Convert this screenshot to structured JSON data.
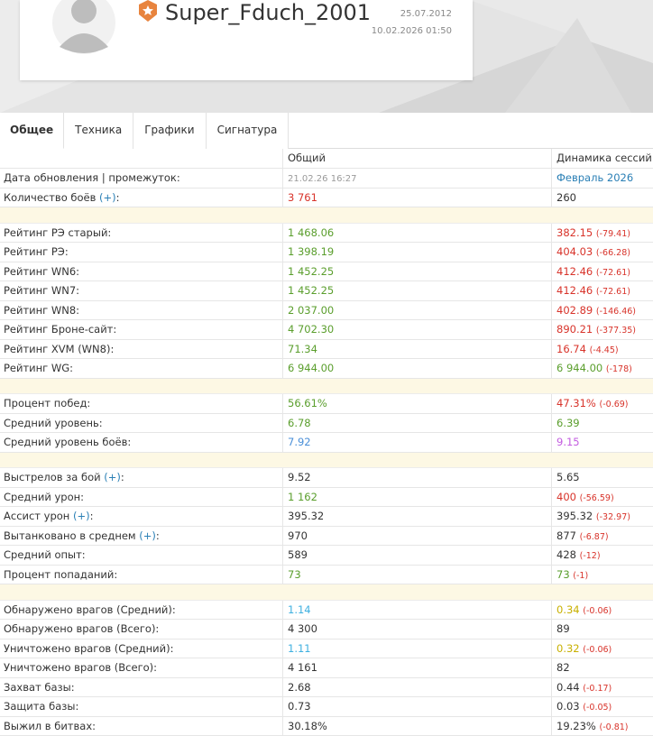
{
  "header": {
    "username": "Super_Fduch_2001",
    "date_registered": "25.07.2012",
    "date_last": "10.02.2026 01:50"
  },
  "tabs": [
    {
      "label": "Общее",
      "active": true
    },
    {
      "label": "Техника"
    },
    {
      "label": "Графики"
    },
    {
      "label": "Сигнатура"
    }
  ],
  "table": {
    "columns": [
      "Общий",
      "Динамика сессий"
    ],
    "groups": [
      [
        {
          "label": "Дата обновления | промежуток:",
          "total": {
            "text": "21.02.26 16:27",
            "color": "#9a9a9a",
            "small": true
          },
          "session": {
            "text": "Февраль 2026",
            "color": "#2a7fb5"
          }
        },
        {
          "label": "Количество боёв ",
          "link": "(+)",
          "after": ":",
          "total": {
            "text": "3 761",
            "color": "#d8332a"
          },
          "session": {
            "text": "260",
            "color": "#333333"
          }
        }
      ],
      [
        {
          "label": "Рейтинг РЭ старый:",
          "total": {
            "text": "1 468.06",
            "color": "#5a9e2c"
          },
          "session": {
            "text": "382.15",
            "color": "#d8332a",
            "delta": "(-79.41)"
          }
        },
        {
          "label": "Рейтинг РЭ:",
          "total": {
            "text": "1 398.19",
            "color": "#5a9e2c"
          },
          "session": {
            "text": "404.03",
            "color": "#d8332a",
            "delta": "(-66.28)"
          }
        },
        {
          "label": "Рейтинг WN6:",
          "total": {
            "text": "1 452.25",
            "color": "#5a9e2c"
          },
          "session": {
            "text": "412.46",
            "color": "#d8332a",
            "delta": "(-72.61)"
          }
        },
        {
          "label": "Рейтинг WN7:",
          "total": {
            "text": "1 452.25",
            "color": "#5a9e2c"
          },
          "session": {
            "text": "412.46",
            "color": "#d8332a",
            "delta": "(-72.61)"
          }
        },
        {
          "label": "Рейтинг WN8:",
          "total": {
            "text": "2 037.00",
            "color": "#5a9e2c"
          },
          "session": {
            "text": "402.89",
            "color": "#d8332a",
            "delta": "(-146.46)"
          }
        },
        {
          "label": "Рейтинг Броне-сайт:",
          "total": {
            "text": "4 702.30",
            "color": "#5a9e2c"
          },
          "session": {
            "text": "890.21",
            "color": "#d8332a",
            "delta": "(-377.35)"
          }
        },
        {
          "label": "Рейтинг XVM (WN8):",
          "total": {
            "text": "71.34",
            "color": "#5a9e2c"
          },
          "session": {
            "text": "16.74",
            "color": "#d8332a",
            "delta": "(-4.45)"
          }
        },
        {
          "label": "Рейтинг WG:",
          "total": {
            "text": "6 944.00",
            "color": "#5a9e2c"
          },
          "session": {
            "text": "6 944.00",
            "color": "#5a9e2c",
            "delta": "(-178)"
          }
        }
      ],
      [
        {
          "label": "Процент побед:",
          "total": {
            "text": "56.61%",
            "color": "#5a9e2c"
          },
          "session": {
            "text": "47.31%",
            "color": "#d8332a",
            "delta": "(-0.69)"
          }
        },
        {
          "label": "Средний уровень:",
          "total": {
            "text": "6.78",
            "color": "#5a9e2c"
          },
          "session": {
            "text": "6.39",
            "color": "#5a9e2c"
          }
        },
        {
          "label": "Средний уровень боёв:",
          "total": {
            "text": "7.92",
            "color": "#4a8fd8"
          },
          "session": {
            "text": "9.15",
            "color": "#c35ce0"
          }
        }
      ],
      [
        {
          "label": "Выстрелов за бой ",
          "link": "(+)",
          "after": ":",
          "total": {
            "text": "9.52",
            "color": "#333333"
          },
          "session": {
            "text": "5.65",
            "color": "#333333"
          }
        },
        {
          "label": "Средний урон:",
          "total": {
            "text": "1 162",
            "color": "#5a9e2c"
          },
          "session": {
            "text": "400",
            "color": "#d8332a",
            "delta": "(-56.59)"
          }
        },
        {
          "label": "Ассист урон ",
          "link": "(+)",
          "after": ":",
          "total": {
            "text": "395.32",
            "color": "#333333"
          },
          "session": {
            "text": "395.32",
            "color": "#333333",
            "delta": "(-32.97)"
          }
        },
        {
          "label": "Вытанковано в среднем ",
          "link": "(+)",
          "after": ":",
          "total": {
            "text": "970",
            "color": "#333333"
          },
          "session": {
            "text": "877",
            "color": "#333333",
            "delta": "(-6.87)"
          }
        },
        {
          "label": "Средний опыт:",
          "total": {
            "text": "589",
            "color": "#333333"
          },
          "session": {
            "text": "428",
            "color": "#333333",
            "delta": "(-12)"
          }
        },
        {
          "label": "Процент попаданий:",
          "total": {
            "text": "73",
            "color": "#5a9e2c"
          },
          "session": {
            "text": "73",
            "color": "#5a9e2c",
            "delta": "(-1)"
          }
        }
      ],
      [
        {
          "label": "Обнаружено врагов (Средний):",
          "total": {
            "text": "1.14",
            "color": "#3fb0e0"
          },
          "session": {
            "text": "0.34",
            "color": "#c8b000",
            "delta": "(-0.06)"
          }
        },
        {
          "label": "Обнаружено врагов (Всего):",
          "total": {
            "text": "4 300",
            "color": "#333333"
          },
          "session": {
            "text": "89",
            "color": "#333333"
          }
        },
        {
          "label": "Уничтожено врагов (Средний):",
          "total": {
            "text": "1.11",
            "color": "#3fb0e0"
          },
          "session": {
            "text": "0.32",
            "color": "#c8b000",
            "delta": "(-0.06)"
          }
        },
        {
          "label": "Уничтожено врагов (Всего):",
          "total": {
            "text": "4 161",
            "color": "#333333"
          },
          "session": {
            "text": "82",
            "color": "#333333"
          }
        },
        {
          "label": "Захват базы:",
          "total": {
            "text": "2.68",
            "color": "#333333"
          },
          "session": {
            "text": "0.44",
            "color": "#333333",
            "delta": "(-0.17)"
          }
        },
        {
          "label": "Защита базы:",
          "total": {
            "text": "0.73",
            "color": "#333333"
          },
          "session": {
            "text": "0.03",
            "color": "#333333",
            "delta": "(-0.05)"
          }
        },
        {
          "label": "Выжил в битвах:",
          "total": {
            "text": "30.18%",
            "color": "#333333"
          },
          "session": {
            "text": "19.23%",
            "color": "#333333",
            "delta": "(-0.81)"
          }
        }
      ]
    ]
  }
}
